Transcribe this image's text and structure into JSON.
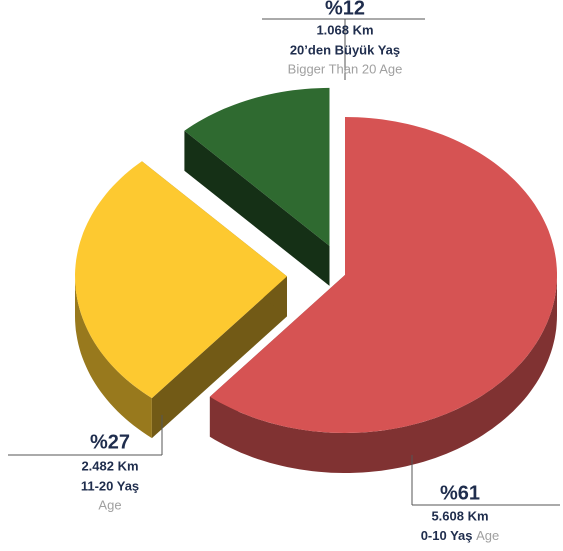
{
  "chart_data": {
    "type": "pie",
    "categories": [
      "0-10 Yaş",
      "11-20 Yaş",
      "20’den Büyük Yaş"
    ],
    "values": [
      61,
      27,
      12
    ],
    "value_labels": [
      "%61",
      "%27",
      "%12"
    ],
    "distances": [
      "5.608 Km",
      "2.482 Km",
      "1.068 Km"
    ],
    "subtitles": [
      "Age",
      "Age",
      "Bigger Than 20 Age"
    ],
    "colors": [
      "#d65353",
      "#fdc930",
      "#2f6a30"
    ]
  }
}
